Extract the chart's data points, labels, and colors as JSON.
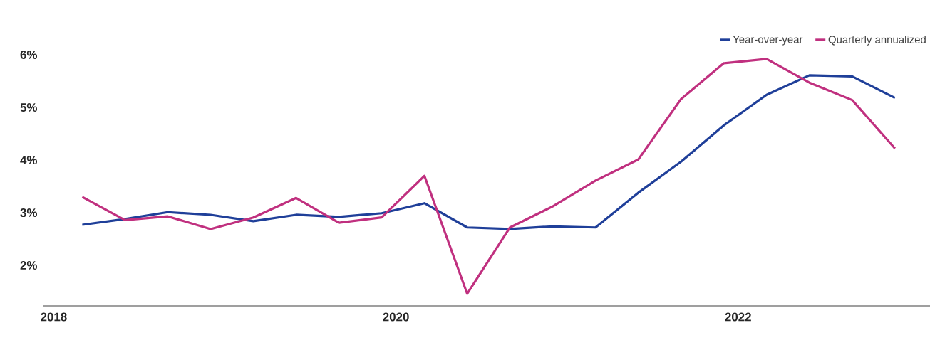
{
  "chart_data": {
    "type": "line",
    "x": [
      "2018-03",
      "2018-06",
      "2018-09",
      "2018-12",
      "2019-03",
      "2019-06",
      "2019-09",
      "2019-12",
      "2020-03",
      "2020-06",
      "2020-09",
      "2020-12",
      "2021-03",
      "2021-06",
      "2021-09",
      "2021-12",
      "2022-03",
      "2022-06",
      "2022-09",
      "2022-12"
    ],
    "series": [
      {
        "name": "Year-over-year",
        "color": "#1f3f99",
        "values": [
          2.77,
          2.88,
          3.01,
          2.96,
          2.84,
          2.96,
          2.92,
          2.99,
          3.18,
          2.72,
          2.69,
          2.74,
          2.72,
          3.38,
          3.97,
          4.66,
          5.24,
          5.61,
          5.59,
          5.18
        ]
      },
      {
        "name": "Quarterly annualized",
        "color": "#c0307f",
        "values": [
          3.3,
          2.86,
          2.93,
          2.69,
          2.91,
          3.28,
          2.81,
          2.91,
          3.7,
          1.46,
          2.72,
          3.12,
          3.61,
          4.01,
          5.16,
          5.84,
          5.92,
          5.47,
          5.14,
          4.22
        ]
      }
    ],
    "xlim": [
      "2017-12-08",
      "2023-02-15"
    ],
    "xticks": [
      "2018",
      "2020",
      "2022"
    ],
    "ylim": [
      1.23,
      6
    ],
    "yticks": [
      {
        "value": 2,
        "label": "2%"
      },
      {
        "value": 3,
        "label": "3%"
      },
      {
        "value": 4,
        "label": "4%"
      },
      {
        "value": 5,
        "label": "5%"
      },
      {
        "value": 6,
        "label": "6%"
      }
    ],
    "legend": "top right"
  }
}
